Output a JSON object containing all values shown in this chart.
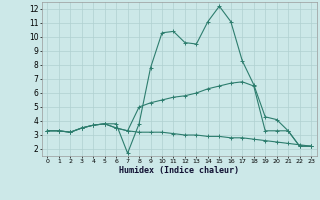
{
  "xlabel": "Humidex (Indice chaleur)",
  "bg_color": "#cce8e8",
  "grid_color": "#b0d0d0",
  "line_color": "#2d7d6e",
  "xlim": [
    -0.5,
    23.5
  ],
  "ylim": [
    1.5,
    12.5
  ],
  "xticks": [
    0,
    1,
    2,
    3,
    4,
    5,
    6,
    7,
    8,
    9,
    10,
    11,
    12,
    13,
    14,
    15,
    16,
    17,
    18,
    19,
    20,
    21,
    22,
    23
  ],
  "yticks": [
    2,
    3,
    4,
    5,
    6,
    7,
    8,
    9,
    10,
    11,
    12
  ],
  "line1_x": [
    0,
    1,
    2,
    3,
    4,
    5,
    6,
    7,
    8,
    9,
    10,
    11,
    12,
    13,
    14,
    15,
    16,
    17,
    18,
    19,
    20,
    21,
    22,
    23
  ],
  "line1_y": [
    3.3,
    3.3,
    3.2,
    3.5,
    3.7,
    3.8,
    3.8,
    1.7,
    3.8,
    7.8,
    10.3,
    10.4,
    9.6,
    9.5,
    11.1,
    12.2,
    11.1,
    8.3,
    6.6,
    4.3,
    4.1,
    3.3,
    2.2,
    2.2
  ],
  "line2_x": [
    0,
    1,
    2,
    3,
    4,
    5,
    6,
    7,
    8,
    9,
    10,
    11,
    12,
    13,
    14,
    15,
    16,
    17,
    18,
    19,
    20,
    21,
    22,
    23
  ],
  "line2_y": [
    3.3,
    3.3,
    3.2,
    3.5,
    3.7,
    3.8,
    3.5,
    3.3,
    5.0,
    5.3,
    5.5,
    5.7,
    5.8,
    6.0,
    6.3,
    6.5,
    6.7,
    6.8,
    6.5,
    3.3,
    3.3,
    3.3,
    2.2,
    2.2
  ],
  "line3_x": [
    0,
    1,
    2,
    3,
    4,
    5,
    6,
    7,
    8,
    9,
    10,
    11,
    12,
    13,
    14,
    15,
    16,
    17,
    18,
    19,
    20,
    21,
    22,
    23
  ],
  "line3_y": [
    3.3,
    3.3,
    3.2,
    3.5,
    3.7,
    3.8,
    3.5,
    3.3,
    3.2,
    3.2,
    3.2,
    3.1,
    3.0,
    3.0,
    2.9,
    2.9,
    2.8,
    2.8,
    2.7,
    2.6,
    2.5,
    2.4,
    2.3,
    2.2
  ]
}
